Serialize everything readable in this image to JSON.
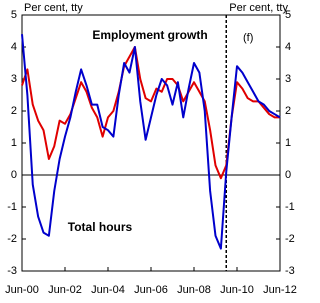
{
  "chart_data": {
    "type": "line",
    "y_label": "Per cent, tty",
    "y2_label": "Per cent, tty",
    "annotations": [
      {
        "text": "Employment growth",
        "color": "#e00000"
      },
      {
        "text": "Total hours",
        "color": "#0000cc"
      },
      {
        "text": "(f)",
        "color": "#000000"
      }
    ],
    "categories": [
      "Jun-00",
      null,
      null,
      null,
      null,
      null,
      null,
      null,
      "Jun-02",
      null,
      null,
      null,
      null,
      null,
      null,
      null,
      "Jun-04",
      null,
      null,
      null,
      null,
      null,
      null,
      null,
      "Jun-06",
      null,
      null,
      null,
      null,
      null,
      null,
      null,
      "Jun-08",
      null,
      null,
      null,
      null,
      null,
      null,
      null,
      "Jun-10",
      null,
      null,
      null,
      null,
      null,
      null,
      null,
      "Jun-12"
    ],
    "forecast_from": 38,
    "series": [
      {
        "name": "Employment growth",
        "color": "#e00000",
        "values": [
          2.8,
          3.3,
          2.2,
          1.7,
          1.4,
          0.5,
          0.9,
          1.7,
          1.6,
          1.9,
          2.4,
          2.9,
          2.6,
          2.1,
          1.8,
          1.2,
          1.8,
          2.0,
          2.6,
          3.4,
          3.7,
          4.0,
          3.0,
          2.4,
          2.3,
          2.7,
          2.6,
          3.0,
          3.0,
          2.8,
          2.3,
          2.6,
          2.9,
          2.6,
          2.3,
          1.4,
          0.3,
          -0.1,
          0.3,
          1.8,
          2.9,
          2.7,
          2.4,
          2.3,
          2.3,
          2.1,
          1.9,
          1.8,
          1.8
        ]
      },
      {
        "name": "Total hours",
        "color": "#0000cc",
        "values": [
          4.4,
          2.5,
          -0.3,
          -1.3,
          -1.8,
          -1.9,
          -0.5,
          0.5,
          1.2,
          1.8,
          2.6,
          3.3,
          2.8,
          2.2,
          2.2,
          1.5,
          1.4,
          1.2,
          2.5,
          3.5,
          3.2,
          4.0,
          2.3,
          1.1,
          1.8,
          2.5,
          3.0,
          2.8,
          2.2,
          2.9,
          1.8,
          2.7,
          3.5,
          3.2,
          2.0,
          -0.5,
          -1.9,
          -2.3,
          0.1,
          1.8,
          3.4,
          3.2,
          2.9,
          2.6,
          2.3,
          2.2,
          2.0,
          1.9,
          1.8
        ],
        "axis": "y"
      }
    ],
    "ylim": [
      -3,
      5
    ],
    "yticks": [
      -3,
      -2,
      -1,
      0,
      1,
      2,
      3,
      4,
      5
    ],
    "y2lim": [
      -3,
      5
    ],
    "y2ticks": [
      -3,
      -2,
      -1,
      0,
      1,
      2,
      3,
      4,
      5
    ]
  }
}
